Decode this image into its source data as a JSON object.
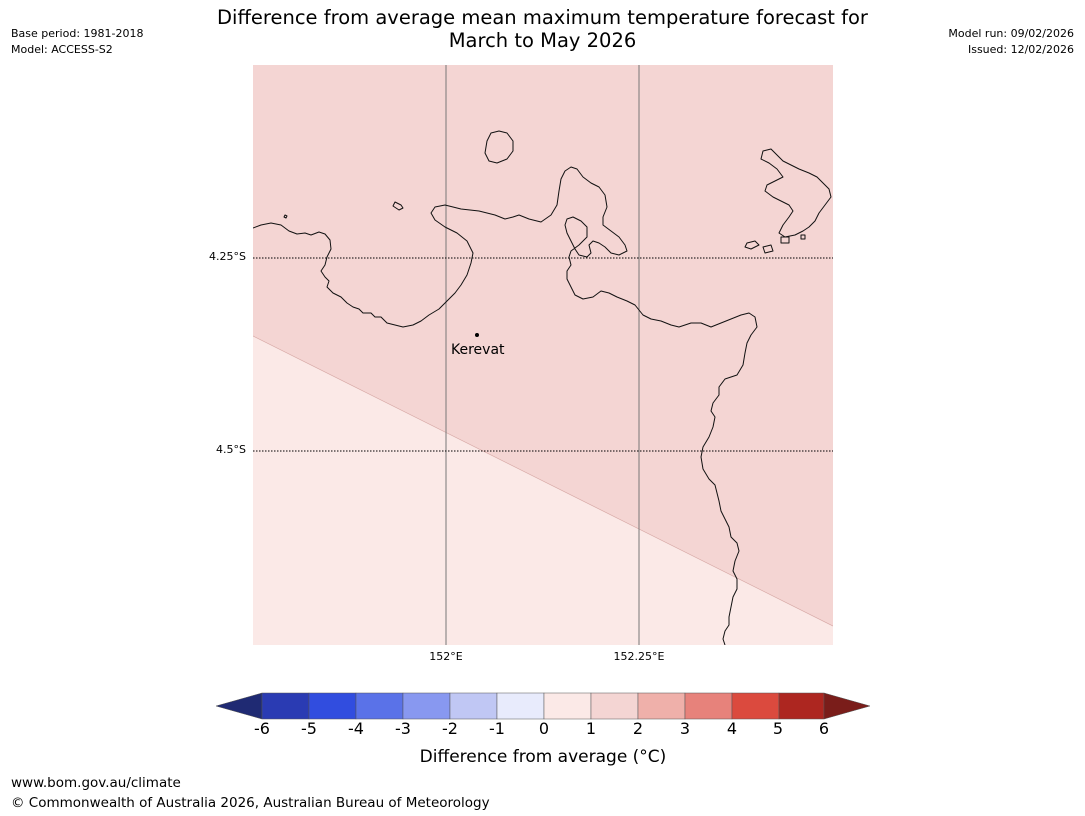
{
  "header": {
    "title_line1": "Difference from average mean maximum temperature forecast for",
    "title_line2": "March to May 2026",
    "base_period": "Base period: 1981-2018",
    "model": "Model: ACCESS-S2",
    "model_run": "Model run: 09/02/2026",
    "issued": "Issued: 12/02/2026"
  },
  "map": {
    "lat_labels": [
      "4.25°S",
      "4.5°S"
    ],
    "lon_labels": [
      "152°E",
      "152.25°E"
    ],
    "place": {
      "name": "Kerevat"
    },
    "fill_colors": {
      "zone_0_1": "#fbe9e7",
      "zone_1_2": "#f4d5d3"
    },
    "category_values": [
      "1 to 2",
      "0 to 1"
    ]
  },
  "colorbar": {
    "ticks": [
      "-6",
      "-5",
      "-4",
      "-3",
      "-2",
      "-1",
      "0",
      "1",
      "2",
      "3",
      "4",
      "5",
      "6"
    ],
    "colors": {
      "below_-6": "#1f2a73",
      "-6_-5": "#2a3bb3",
      "-5_-4": "#314ddf",
      "-4_-3": "#5a72e8",
      "-3_-2": "#8898f0",
      "-2_-1": "#c0c7f4",
      "-1_0": "#e8ebfc",
      "0_1": "#fbe9e7",
      "1_2": "#f4d5d3",
      "2_3": "#efb0aa",
      "3_4": "#e7827b",
      "4_5": "#db4a3e",
      "5_6": "#ad2620",
      "above_6": "#7a1d1a"
    },
    "title": "Difference from average (°C)"
  },
  "footer": {
    "url": "www.bom.gov.au/climate",
    "copyright": "© Commonwealth of Australia 2026, Australian Bureau of Meteorology"
  }
}
